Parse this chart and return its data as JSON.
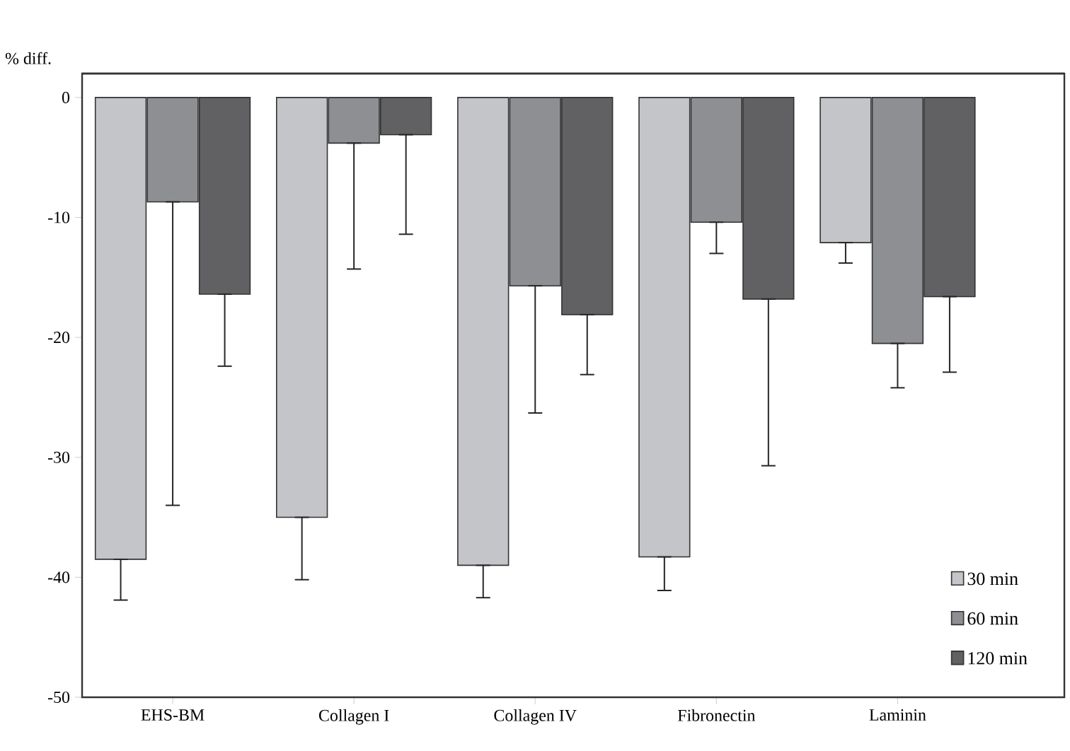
{
  "chart_data": {
    "type": "bar",
    "ylabel": "% diff.",
    "categories": [
      "EHS-BM",
      "Collagen I",
      "Collagen IV",
      "Fibronectin",
      "Laminin"
    ],
    "series": [
      {
        "name": "30 min",
        "color": "#c4c5c9",
        "values": [
          -38.5,
          -35.0,
          -39.0,
          -38.3,
          -12.1
        ],
        "errors": [
          [
            -41.9,
            -38.5
          ],
          [
            -40.2,
            -35.0
          ],
          [
            -41.7,
            -39.0
          ],
          [
            -41.1,
            -38.3
          ],
          [
            -13.8,
            -12.1
          ]
        ]
      },
      {
        "name": "60 min",
        "color": "#8e8f93",
        "values": [
          -8.7,
          -3.8,
          -15.7,
          -10.4,
          -20.5
        ],
        "errors": [
          [
            -34.0,
            -8.7
          ],
          [
            -14.3,
            -3.8
          ],
          [
            -26.3,
            -15.7
          ],
          [
            -13.0,
            -10.4
          ],
          [
            -24.2,
            -20.5
          ]
        ]
      },
      {
        "name": "120 min",
        "color": "#616163",
        "values": [
          -16.4,
          -3.1,
          -18.1,
          -16.8,
          -16.6
        ],
        "errors": [
          [
            -22.4,
            -16.4
          ],
          [
            -11.4,
            -3.1
          ],
          [
            -23.1,
            -18.1
          ],
          [
            -30.7,
            -16.8
          ],
          [
            -22.9,
            -16.6
          ]
        ]
      }
    ],
    "ylim": [
      -50,
      2
    ],
    "yticks": [
      0,
      -10,
      -20,
      -30,
      -40,
      -50
    ],
    "legend": "bottom right",
    "grid": false
  }
}
